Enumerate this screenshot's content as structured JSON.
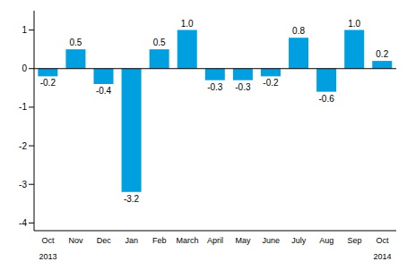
{
  "chart_data": {
    "type": "bar",
    "categories": [
      "Oct",
      "Nov",
      "Dec",
      "Jan",
      "Feb",
      "March",
      "April",
      "May",
      "June",
      "July",
      "Aug",
      "Sep",
      "Oct"
    ],
    "values": [
      -0.2,
      0.5,
      -0.4,
      -3.2,
      0.5,
      1.0,
      -0.3,
      -0.3,
      -0.2,
      0.8,
      -0.6,
      1.0,
      0.2
    ],
    "value_labels": [
      "-0.2",
      "0.5",
      "-0.4",
      "-3.2",
      "0.5",
      "1.0",
      "-0.3",
      "-0.3",
      "-0.2",
      "0.8",
      "-0.6",
      "1.0",
      "0.2"
    ],
    "annotations": [
      "2013",
      "2014"
    ],
    "color": "#009fdf",
    "ylim": [
      -4.2,
      1.5
    ],
    "yticks": [
      -4,
      -3,
      -2,
      -1,
      0,
      1
    ],
    "grid": false,
    "data_labels": true
  }
}
